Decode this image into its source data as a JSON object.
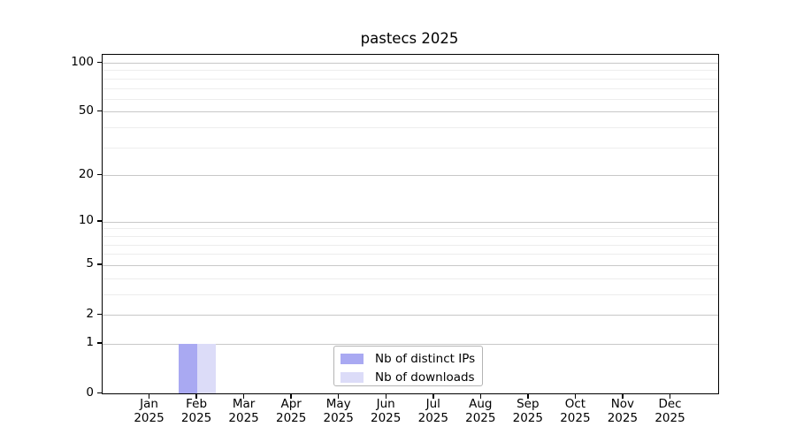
{
  "chart_data": {
    "type": "bar",
    "title": "pastecs 2025",
    "categories": [
      {
        "line1": "Jan",
        "line2": "2025"
      },
      {
        "line1": "Feb",
        "line2": "2025"
      },
      {
        "line1": "Mar",
        "line2": "2025"
      },
      {
        "line1": "Apr",
        "line2": "2025"
      },
      {
        "line1": "May",
        "line2": "2025"
      },
      {
        "line1": "Jun",
        "line2": "2025"
      },
      {
        "line1": "Jul",
        "line2": "2025"
      },
      {
        "line1": "Aug",
        "line2": "2025"
      },
      {
        "line1": "Sep",
        "line2": "2025"
      },
      {
        "line1": "Oct",
        "line2": "2025"
      },
      {
        "line1": "Nov",
        "line2": "2025"
      },
      {
        "line1": "Dec",
        "line2": "2025"
      }
    ],
    "series": [
      {
        "name": "Nb of distinct IPs",
        "color": "#a9a9f2",
        "values": [
          0,
          1,
          0,
          0,
          0,
          0,
          0,
          0,
          0,
          0,
          0,
          0
        ]
      },
      {
        "name": "Nb of downloads",
        "color": "#dcdcf8",
        "values": [
          0,
          1,
          0,
          0,
          0,
          0,
          0,
          0,
          0,
          0,
          0,
          0
        ]
      }
    ],
    "xlabel": "",
    "ylabel": "",
    "yscale": "log1p",
    "ylim": [
      0,
      100
    ],
    "yticks": [
      0,
      1,
      2,
      5,
      10,
      20,
      50,
      100
    ],
    "yticks_minor": [
      3,
      4,
      6,
      7,
      8,
      9,
      30,
      40,
      60,
      70,
      80,
      90
    ],
    "grid": "on",
    "legend_position": "lower center inside plot"
  }
}
